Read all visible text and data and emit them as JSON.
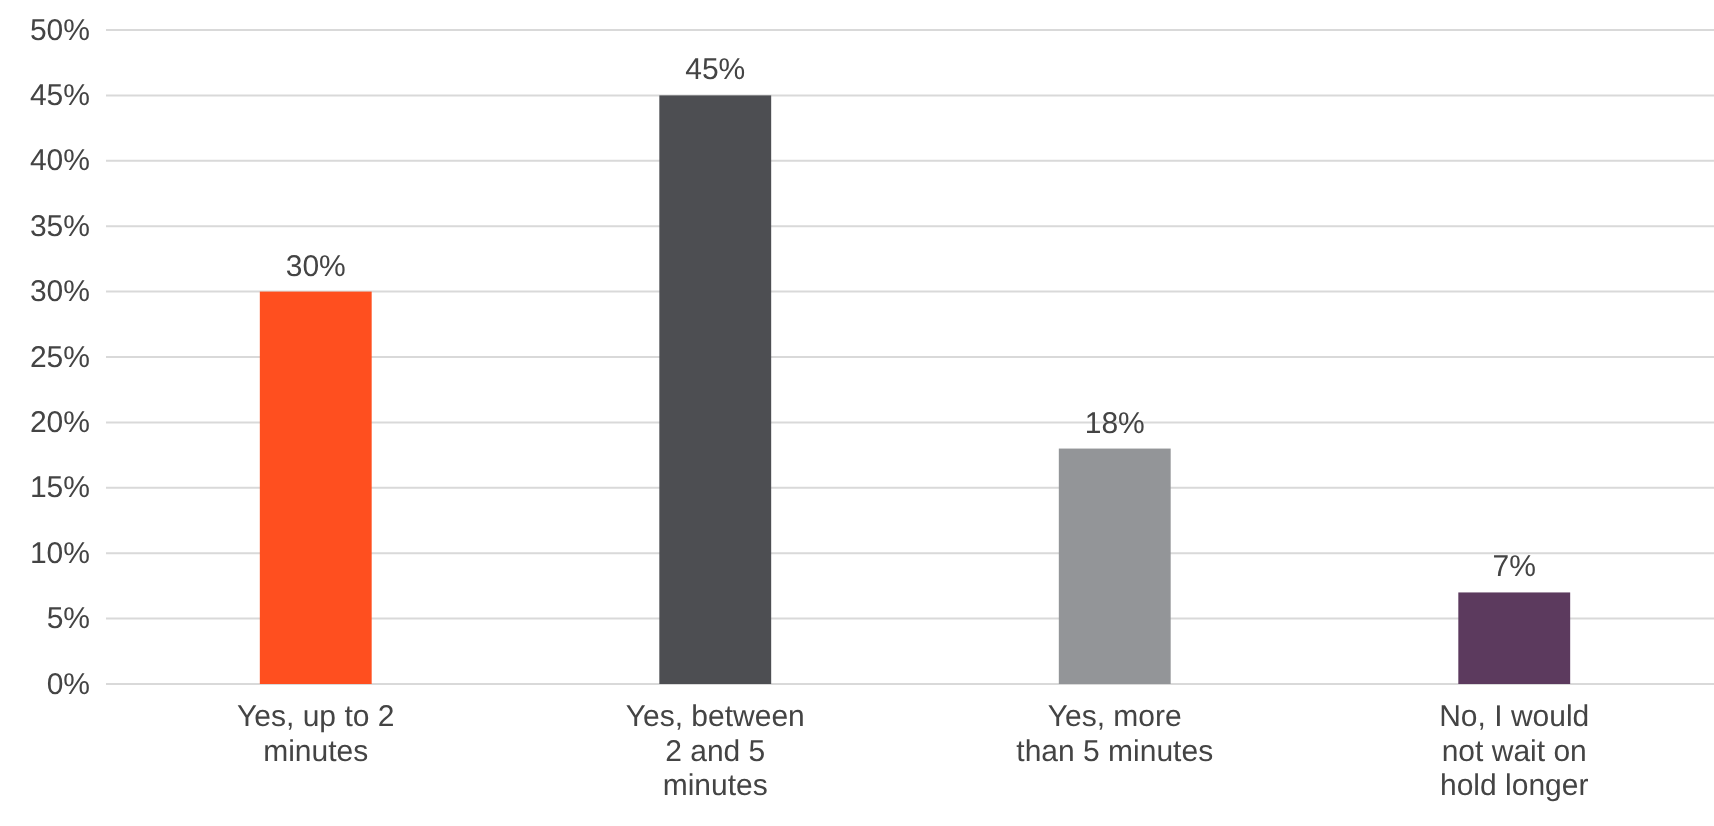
{
  "chart_data": {
    "type": "bar",
    "categories": [
      "Yes, up to 2 minutes",
      "Yes, between 2 and 5 minutes",
      "Yes, more than 5 minutes",
      "No, I would not wait on hold longer"
    ],
    "values": [
      30,
      45,
      18,
      7
    ],
    "colors": [
      "#ff4f1f",
      "#4d4e52",
      "#939598",
      "#5c3a5e"
    ],
    "ylim": [
      0,
      50
    ],
    "yticks": [
      {
        "value": 0,
        "label": "0%"
      },
      {
        "value": 5,
        "label": "5%"
      },
      {
        "value": 10,
        "label": "10%"
      },
      {
        "value": 15,
        "label": "15%"
      },
      {
        "value": 20,
        "label": "20%"
      },
      {
        "value": 25,
        "label": "25%"
      },
      {
        "value": 30,
        "label": "30%"
      },
      {
        "value": 35,
        "label": "35%"
      },
      {
        "value": 40,
        "label": "40%"
      },
      {
        "value": 45,
        "label": "45%"
      },
      {
        "value": 50,
        "label": "50%"
      }
    ],
    "value_labels": [
      "30%",
      "45%",
      "18%",
      "7%"
    ],
    "grid": "y"
  }
}
